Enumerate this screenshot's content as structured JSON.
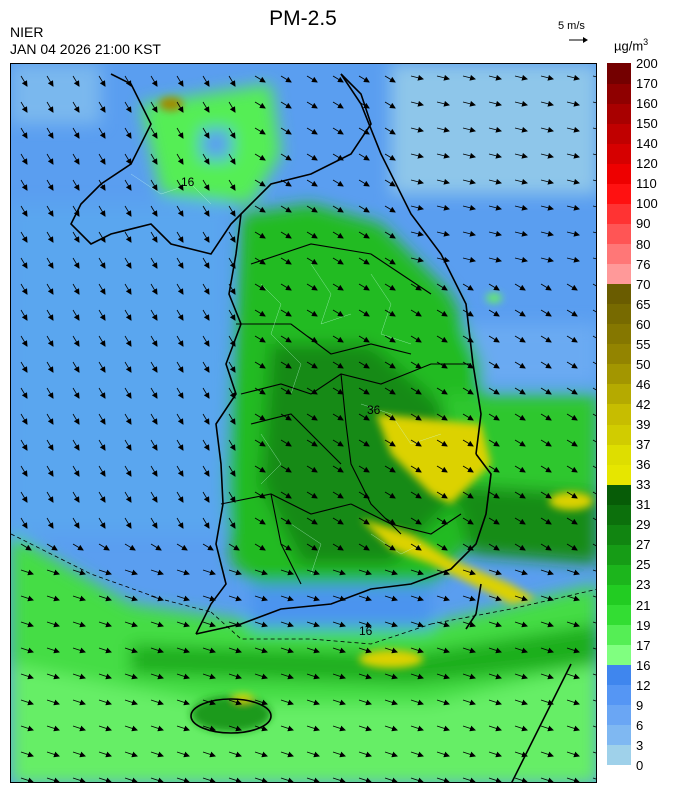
{
  "header": {
    "org": "NIER",
    "timestamp": "JAN 04 2026 21:00 KST",
    "title": "PM-2.5",
    "wind_reference": "5 m/s",
    "unit_main": "µg/m",
    "unit_sup": "3"
  },
  "legend": {
    "boundaries": [
      "0",
      "3",
      "6",
      "9",
      "12",
      "16",
      "17",
      "19",
      "21",
      "23",
      "25",
      "27",
      "29",
      "31",
      "33",
      "36",
      "37",
      "39",
      "42",
      "46",
      "50",
      "55",
      "60",
      "65",
      "70",
      "76",
      "80",
      "90",
      "100",
      "110",
      "120",
      "140",
      "150",
      "160",
      "170",
      "200"
    ],
    "colors": [
      "#9fd1ea",
      "#7fb8f2",
      "#6aa6f4",
      "#5596f4",
      "#3f86ee",
      "#80ff80",
      "#55ee55",
      "#33dd33",
      "#22cc22",
      "#1cb51c",
      "#169c16",
      "#118511",
      "#0c700c",
      "#075c07",
      "#e6e600",
      "#dede00",
      "#d1cc00",
      "#c7bd00",
      "#b5aa00",
      "#a39600",
      "#938400",
      "#857700",
      "#776a00",
      "#6a5c00",
      "#ff9999",
      "#ff7777",
      "#ff5555",
      "#ff3333",
      "#ff1111",
      "#ee0000",
      "#d60000",
      "#c00000",
      "#a80000",
      "#8f0000",
      "#740000"
    ]
  },
  "map": {
    "contour_labels": [
      "16",
      "16",
      "36"
    ],
    "colors": {
      "sea_light": "#8ec6ea",
      "sea_mid": "#4b94ef",
      "land_green": "#22bb22",
      "land_dark": "#118811",
      "low_green": "#55ee55",
      "pale_green": "#8cf08c",
      "yellow": "#dcd200",
      "olive": "#a08c00"
    }
  }
}
